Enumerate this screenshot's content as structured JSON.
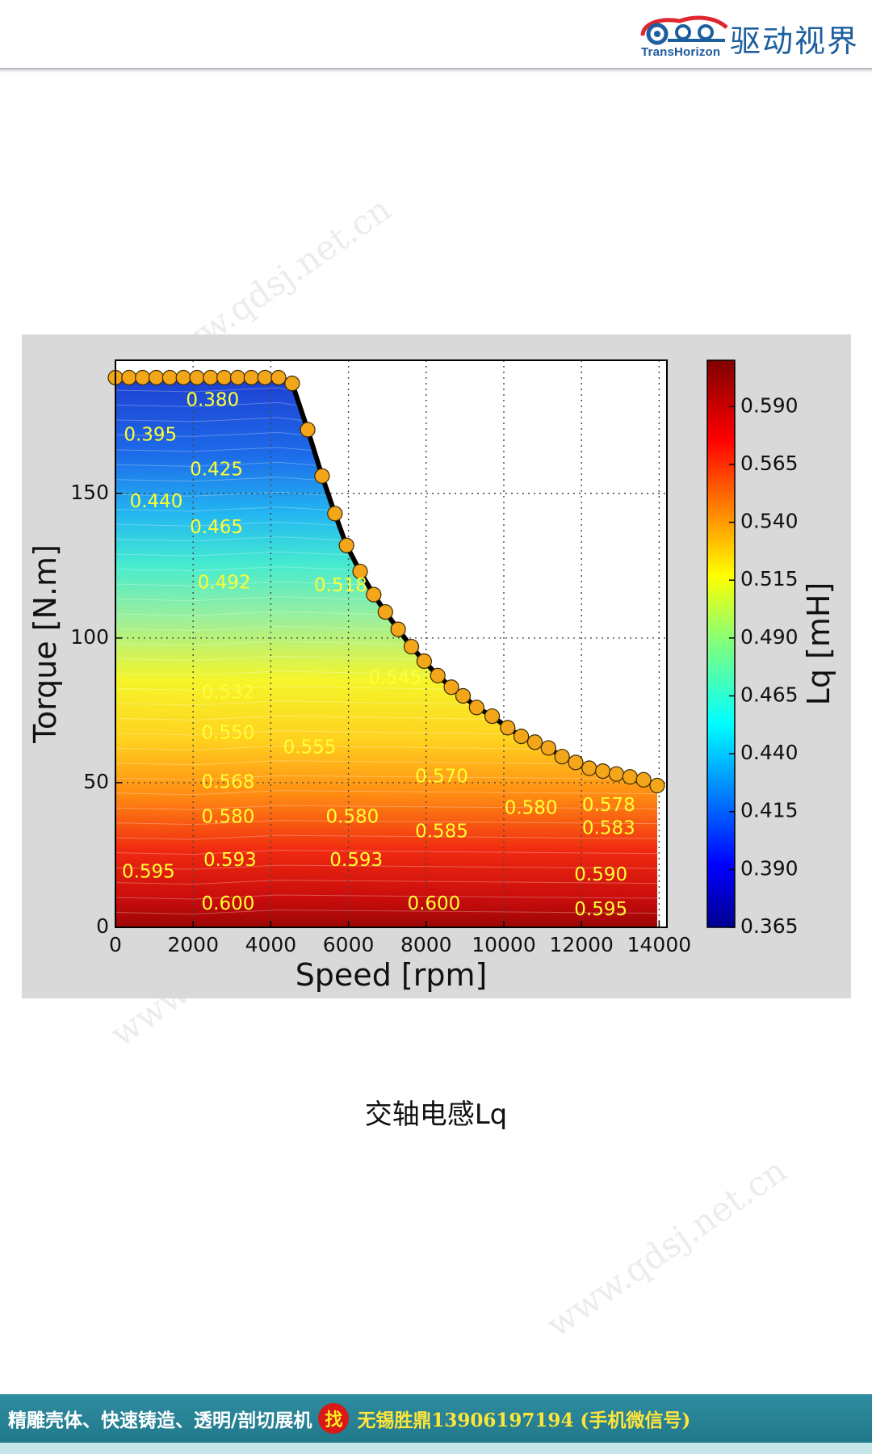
{
  "header": {
    "logo_en": "TransHorizon",
    "logo_cn": "驱动视界"
  },
  "watermark": "www.qdsj.net.cn",
  "caption": "交轴电感Lq",
  "footer": {
    "left_text": "精雕壳体、快速铸造、透明/剖切展机",
    "badge": "找",
    "right_text": "无锡胜鼎13906197194 (手机微信号)"
  },
  "colors": {
    "panel_bg": "#d9d9d9",
    "marker_fill": "#f4a61a",
    "label_color": "#ffff33",
    "footer_bg": "#2a8597",
    "brand_blue": "#1d5f9e"
  },
  "chart_data": {
    "type": "heatmap",
    "subtype": "contour-map",
    "xlabel": "Speed [rpm]",
    "ylabel": "Torque [N.m]",
    "colorbar_label": "Lq [mH]",
    "xlim": [
      0,
      14200
    ],
    "ylim": [
      0,
      196
    ],
    "xticks": [
      0,
      2000,
      4000,
      6000,
      8000,
      10000,
      12000,
      14000
    ],
    "yticks": [
      0,
      50,
      100,
      150
    ],
    "colorbar_range": [
      0.365,
      0.61
    ],
    "colorbar_ticks": [
      "0.590",
      "0.565",
      "0.540",
      "0.515",
      "0.490",
      "0.465",
      "0.440",
      "0.415",
      "0.390",
      "0.365"
    ],
    "colormap": "jet",
    "grid": true,
    "envelope": {
      "x": [
        0,
        350,
        700,
        1050,
        1400,
        1750,
        2100,
        2450,
        2800,
        3150,
        3500,
        3850,
        4200,
        4550,
        4950,
        5320,
        5650,
        5950,
        6300,
        6650,
        6950,
        7280,
        7620,
        7950,
        8300,
        8650,
        8950,
        9300,
        9700,
        10100,
        10450,
        10800,
        11150,
        11500,
        11850,
        12200,
        12550,
        12900,
        13250,
        13600,
        13950
      ],
      "y": [
        190,
        190,
        190,
        190,
        190,
        190,
        190,
        190,
        190,
        190,
        190,
        190,
        190,
        188,
        172,
        156,
        143,
        132,
        123,
        115,
        109,
        103,
        97,
        92,
        87,
        83,
        80,
        76,
        73,
        69,
        66,
        64,
        62,
        59,
        57,
        55,
        54,
        53,
        52,
        51,
        49
      ]
    },
    "contour_labels": [
      {
        "text": "0.380",
        "x": 2500,
        "y": 182
      },
      {
        "text": "0.395",
        "x": 900,
        "y": 170
      },
      {
        "text": "0.425",
        "x": 2600,
        "y": 158
      },
      {
        "text": "0.440",
        "x": 1050,
        "y": 147
      },
      {
        "text": "0.465",
        "x": 2600,
        "y": 138
      },
      {
        "text": "0.492",
        "x": 2800,
        "y": 119
      },
      {
        "text": "0.518",
        "x": 5800,
        "y": 118
      },
      {
        "text": "0.532",
        "x": 2900,
        "y": 81
      },
      {
        "text": "0.545",
        "x": 7200,
        "y": 86
      },
      {
        "text": "0.550",
        "x": 2900,
        "y": 67
      },
      {
        "text": "0.555",
        "x": 5000,
        "y": 62
      },
      {
        "text": "0.568",
        "x": 2900,
        "y": 50
      },
      {
        "text": "0.570",
        "x": 8400,
        "y": 52
      },
      {
        "text": "0.580",
        "x": 2900,
        "y": 38
      },
      {
        "text": "0.580",
        "x": 6100,
        "y": 38
      },
      {
        "text": "0.580",
        "x": 10700,
        "y": 41
      },
      {
        "text": "0.578",
        "x": 12700,
        "y": 42
      },
      {
        "text": "0.583",
        "x": 12700,
        "y": 34
      },
      {
        "text": "0.585",
        "x": 8400,
        "y": 33
      },
      {
        "text": "0.595",
        "x": 850,
        "y": 19
      },
      {
        "text": "0.593",
        "x": 2950,
        "y": 23
      },
      {
        "text": "0.593",
        "x": 6200,
        "y": 23
      },
      {
        "text": "0.590",
        "x": 12500,
        "y": 18
      },
      {
        "text": "0.600",
        "x": 2900,
        "y": 8
      },
      {
        "text": "0.600",
        "x": 8200,
        "y": 8
      },
      {
        "text": "0.595",
        "x": 12500,
        "y": 6
      }
    ]
  }
}
